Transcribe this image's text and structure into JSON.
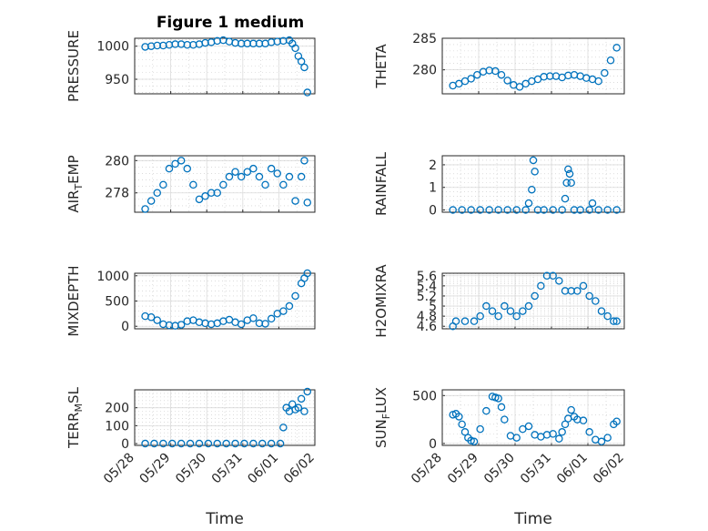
{
  "figure_title": "Figure 1 medium",
  "chart_data": [
    {
      "type": "scatter",
      "ylabel": "PRESSURE",
      "title": "Figure 1 medium",
      "ylim": [
        928,
        1012
      ],
      "yticks": [
        "950",
        "1000"
      ],
      "ytick_values": [
        950,
        1000
      ],
      "xlim": [
        "05/28",
        "06/02"
      ],
      "x": [
        "05/28 07:00",
        "05/28 11:00",
        "05/28 15:00",
        "05/28 19:00",
        "05/28 23:00",
        "05/29 03:00",
        "05/29 07:00",
        "05/29 11:00",
        "05/29 15:00",
        "05/29 19:00",
        "05/29 23:00",
        "05/30 03:00",
        "05/30 07:00",
        "05/30 11:00",
        "05/30 15:00",
        "05/30 19:00",
        "05/30 23:00",
        "05/31 03:00",
        "05/31 07:00",
        "05/31 11:00",
        "05/31 15:00",
        "05/31 19:00",
        "05/31 23:00",
        "06/01 03:00",
        "06/01 07:00",
        "06/01 09:00",
        "06/01 11:00",
        "06/01 13:00",
        "06/01 15:00",
        "06/01 17:00",
        "06/01 19:00"
      ],
      "y": [
        999,
        1000,
        1001,
        1001,
        1002,
        1003,
        1003,
        1002,
        1002,
        1003,
        1005,
        1006,
        1008,
        1009,
        1007,
        1005,
        1004,
        1004,
        1004,
        1004,
        1004,
        1006,
        1007,
        1008,
        1009,
        1004,
        997,
        985,
        977,
        968,
        930
      ],
      "color": "#0072bd"
    },
    {
      "type": "scatter",
      "ylabel": "THETA",
      "ylim": [
        276.2,
        285
      ],
      "yticks": [
        "280",
        "285"
      ],
      "ytick_values": [
        280,
        285
      ],
      "xlim": [
        "05/28",
        "06/02"
      ],
      "x": [
        "05/28 07:00",
        "05/28 11:00",
        "05/28 15:00",
        "05/28 19:00",
        "05/28 23:00",
        "05/29 03:00",
        "05/29 07:00",
        "05/29 11:00",
        "05/29 15:00",
        "05/29 19:00",
        "05/29 23:00",
        "05/30 03:00",
        "05/30 07:00",
        "05/30 11:00",
        "05/30 15:00",
        "05/30 19:00",
        "05/30 23:00",
        "05/31 03:00",
        "05/31 07:00",
        "05/31 11:00",
        "05/31 15:00",
        "05/31 19:00",
        "05/31 23:00",
        "06/01 03:00",
        "06/01 07:00",
        "06/01 11:00",
        "06/01 15:00",
        "06/01 19:00"
      ],
      "y": [
        277.5,
        277.8,
        278.2,
        278.6,
        279.2,
        279.7,
        279.9,
        279.8,
        279.2,
        278.3,
        277.6,
        277.3,
        277.8,
        278.2,
        278.5,
        278.9,
        279.0,
        279.0,
        278.8,
        279.1,
        279.2,
        279.0,
        278.7,
        278.5,
        278.2,
        279.5,
        281.5,
        283.5
      ],
      "color": "#0072bd"
    },
    {
      "type": "scatter",
      "ylabel": "AIR_T EMP",
      "ylim": [
        276.8,
        280.3
      ],
      "yticks": [
        "278",
        "280"
      ],
      "ytick_values": [
        278,
        280
      ],
      "xlim": [
        "05/28",
        "06/02"
      ],
      "x": [
        "05/28 07:00",
        "05/28 11:00",
        "05/28 15:00",
        "05/28 19:00",
        "05/28 23:00",
        "05/29 03:00",
        "05/29 07:00",
        "05/29 11:00",
        "05/29 15:00",
        "05/29 19:00",
        "05/29 23:00",
        "05/30 03:00",
        "05/30 07:00",
        "05/30 11:00",
        "05/30 15:00",
        "05/30 19:00",
        "05/30 23:00",
        "05/31 03:00",
        "05/31 07:00",
        "05/31 11:00",
        "05/31 15:00",
        "05/31 19:00",
        "05/31 23:00",
        "06/01 03:00",
        "06/01 07:00",
        "06/01 11:00",
        "06/01 15:00",
        "06/01 17:00",
        "06/01 19:00"
      ],
      "y": [
        277.0,
        277.5,
        278.0,
        278.5,
        279.5,
        279.8,
        280.0,
        279.5,
        278.5,
        277.6,
        277.8,
        278.0,
        278.0,
        278.5,
        279.0,
        279.3,
        279.0,
        279.3,
        279.5,
        279.0,
        278.5,
        279.5,
        279.2,
        278.5,
        279.0,
        277.5,
        279.0,
        280.0,
        277.4
      ],
      "color": "#0072bd"
    },
    {
      "type": "scatter",
      "ylabel": "RAINFALL",
      "ylim": [
        -0.1,
        2.4
      ],
      "yticks": [
        "0",
        "1",
        "2"
      ],
      "ytick_values": [
        0,
        1,
        2
      ],
      "xlim": [
        "05/28",
        "06/02"
      ],
      "x": [
        "05/28 07:00",
        "05/28 13:00",
        "05/28 19:00",
        "05/29 01:00",
        "05/29 07:00",
        "05/29 13:00",
        "05/29 19:00",
        "05/30 01:00",
        "05/30 07:00",
        "05/30 09:00",
        "05/30 11:00",
        "05/30 12:00",
        "05/30 13:00",
        "05/30 15:00",
        "05/30 19:00",
        "05/31 01:00",
        "05/31 07:00",
        "05/31 09:00",
        "05/31 10:00",
        "05/31 11:00",
        "05/31 12:00",
        "05/31 13:00",
        "05/31 15:00",
        "05/31 19:00",
        "06/01 01:00",
        "06/01 03:00",
        "06/01 07:00",
        "06/01 13:00",
        "06/01 19:00"
      ],
      "y": [
        0,
        0,
        0,
        0,
        0,
        0,
        0,
        0,
        0,
        0.3,
        0.9,
        2.2,
        1.7,
        0,
        0,
        0,
        0,
        0.5,
        1.2,
        1.8,
        1.6,
        1.2,
        0,
        0,
        0,
        0.3,
        0,
        0,
        0
      ],
      "color": "#0072bd"
    },
    {
      "type": "scatter",
      "ylabel": "MIXDEPTH",
      "ylim": [
        -50,
        1050
      ],
      "yticks": [
        "0",
        "500",
        "1000"
      ],
      "ytick_values": [
        0,
        500,
        1000
      ],
      "xlim": [
        "05/28",
        "06/02"
      ],
      "x": [
        "05/28 07:00",
        "05/28 11:00",
        "05/28 15:00",
        "05/28 19:00",
        "05/28 23:00",
        "05/29 03:00",
        "05/29 07:00",
        "05/29 11:00",
        "05/29 15:00",
        "05/29 19:00",
        "05/29 23:00",
        "05/30 03:00",
        "05/30 07:00",
        "05/30 11:00",
        "05/30 15:00",
        "05/30 19:00",
        "05/30 23:00",
        "05/31 03:00",
        "05/31 07:00",
        "05/31 11:00",
        "05/31 15:00",
        "05/31 19:00",
        "05/31 23:00",
        "06/01 03:00",
        "06/01 07:00",
        "06/01 11:00",
        "06/01 15:00",
        "06/01 17:00",
        "06/01 19:00"
      ],
      "y": [
        200,
        180,
        120,
        40,
        20,
        10,
        30,
        100,
        120,
        80,
        60,
        40,
        60,
        100,
        130,
        80,
        40,
        120,
        160,
        60,
        50,
        150,
        250,
        300,
        400,
        600,
        850,
        950,
        1050
      ],
      "color": "#0072bd"
    },
    {
      "type": "scatter",
      "ylabel": "H2OMIXRA",
      "ylim": [
        4.55,
        5.65
      ],
      "yticks": [
        "4.6",
        "4.8",
        "5",
        "5.2",
        "5.4",
        "5.6"
      ],
      "ytick_values": [
        4.6,
        4.8,
        5.0,
        5.2,
        5.4,
        5.6
      ],
      "xlim": [
        "05/28",
        "06/02"
      ],
      "x": [
        "05/28 07:00",
        "05/28 09:00",
        "05/28 15:00",
        "05/28 21:00",
        "05/29 01:00",
        "05/29 05:00",
        "05/29 09:00",
        "05/29 13:00",
        "05/29 17:00",
        "05/29 21:00",
        "05/30 01:00",
        "05/30 05:00",
        "05/30 09:00",
        "05/30 13:00",
        "05/30 17:00",
        "05/30 21:00",
        "05/31 01:00",
        "05/31 05:00",
        "05/31 09:00",
        "05/31 13:00",
        "05/31 17:00",
        "05/31 21:00",
        "06/01 01:00",
        "06/01 05:00",
        "06/01 09:00",
        "06/01 13:00",
        "06/01 17:00",
        "06/01 19:00"
      ],
      "y": [
        4.6,
        4.7,
        4.7,
        4.7,
        4.8,
        5.0,
        4.9,
        4.8,
        5.0,
        4.9,
        4.8,
        4.9,
        5.0,
        5.2,
        5.4,
        5.6,
        5.6,
        5.5,
        5.3,
        5.3,
        5.3,
        5.4,
        5.2,
        5.1,
        4.9,
        4.8,
        4.7,
        4.7
      ],
      "color": "#0072bd"
    },
    {
      "type": "scatter",
      "ylabel": "TERR_M SL",
      "ylim": [
        -10,
        300
      ],
      "yticks": [
        "0",
        "100",
        "200"
      ],
      "ytick_values": [
        0,
        100,
        200
      ],
      "xlim": [
        "05/28",
        "06/02"
      ],
      "x": [
        "05/28 07:00",
        "05/28 13:00",
        "05/28 19:00",
        "05/29 01:00",
        "05/29 07:00",
        "05/29 13:00",
        "05/29 19:00",
        "05/30 01:00",
        "05/30 07:00",
        "05/30 13:00",
        "05/30 19:00",
        "05/31 01:00",
        "05/31 07:00",
        "05/31 13:00",
        "05/31 19:00",
        "06/01 01:00",
        "06/01 03:00",
        "06/01 05:00",
        "06/01 07:00",
        "06/01 09:00",
        "06/01 11:00",
        "06/01 13:00",
        "06/01 15:00",
        "06/01 17:00",
        "06/01 19:00"
      ],
      "y": [
        0,
        0,
        0,
        0,
        0,
        0,
        0,
        0,
        0,
        0,
        0,
        0,
        0,
        0,
        0,
        0,
        90,
        200,
        180,
        220,
        190,
        200,
        250,
        180,
        290
      ],
      "color": "#0072bd"
    },
    {
      "type": "scatter",
      "ylabel": "SUN_F LUX",
      "ylim": [
        -20,
        560
      ],
      "yticks": [
        "0",
        "500"
      ],
      "ytick_values": [
        0,
        500
      ],
      "xlim": [
        "05/28",
        "06/02"
      ],
      "x": [
        "05/28 07:00",
        "05/28 09:00",
        "05/28 11:00",
        "05/28 13:00",
        "05/28 15:00",
        "05/28 17:00",
        "05/28 19:00",
        "05/28 21:00",
        "05/29 01:00",
        "05/29 05:00",
        "05/29 09:00",
        "05/29 11:00",
        "05/29 13:00",
        "05/29 15:00",
        "05/29 17:00",
        "05/29 21:00",
        "05/30 01:00",
        "05/30 05:00",
        "05/30 09:00",
        "05/30 13:00",
        "05/30 17:00",
        "05/30 21:00",
        "05/31 01:00",
        "05/31 05:00",
        "05/31 07:00",
        "05/31 09:00",
        "05/31 11:00",
        "05/31 13:00",
        "05/31 15:00",
        "05/31 17:00",
        "05/31 21:00",
        "06/01 01:00",
        "06/01 05:00",
        "06/01 09:00",
        "06/01 13:00",
        "06/01 17:00",
        "06/01 19:00"
      ],
      "y": [
        300,
        310,
        280,
        200,
        120,
        60,
        30,
        20,
        150,
        340,
        490,
        480,
        470,
        380,
        250,
        80,
        60,
        150,
        180,
        90,
        70,
        90,
        100,
        50,
        120,
        200,
        260,
        350,
        280,
        250,
        240,
        120,
        40,
        20,
        60,
        200,
        230
      ],
      "color": "#0072bd"
    }
  ],
  "x_tick_labels": [
    "05/28",
    "05/29",
    "05/30",
    "05/31",
    "06/01",
    "06/02"
  ],
  "x_axis_label": "Time"
}
